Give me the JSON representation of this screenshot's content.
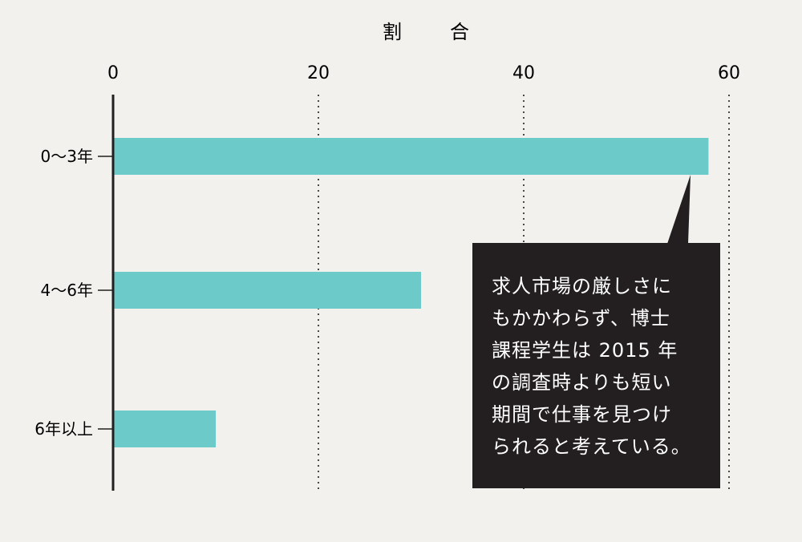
{
  "chart_data": {
    "type": "bar",
    "orientation": "horizontal",
    "xlabel": "割　合",
    "ylabel": "",
    "categories": [
      "0～3年",
      "4～6年",
      "6年以上"
    ],
    "values": [
      58,
      30,
      10
    ],
    "xlim": [
      0,
      60
    ],
    "xticks": [
      0,
      20,
      40,
      60
    ],
    "grid": "dotted vertical lines at 20, 40, 60",
    "bar_color": "#6ccac9"
  },
  "callout": {
    "lines": [
      "求人市場の厳しさに",
      "もかかわらず、博士",
      "課程学生は 2015 年",
      "の調査時よりも短い",
      "期間で仕事を見つけ",
      "られると考えている。"
    ]
  },
  "colors": {
    "background": "#f2f1ed",
    "bar": "#6ccac9",
    "callout_bg": "#231f20",
    "text": "#231f20"
  }
}
